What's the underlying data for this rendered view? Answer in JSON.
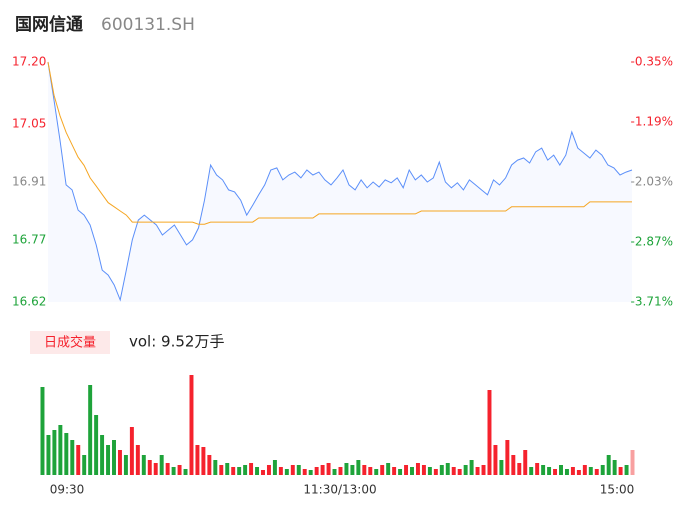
{
  "chart_data": {
    "type": "intraday",
    "title": "国网信通",
    "subtitle": "600131.SH",
    "ylim": [
      16.62,
      17.2
    ],
    "yticks": [
      16.62,
      16.77,
      16.91,
      17.05,
      {
        "value": 17.2,
        "label": "17.20"
      }
    ],
    "y2lim": [
      -3.71,
      -0.35
    ],
    "y2ticks": [
      {
        "value": -3.71,
        "label": "-3.71%"
      },
      {
        "value": -2.87,
        "label": "-2.87%"
      },
      {
        "value": -2.03,
        "label": "-2.03%"
      },
      {
        "value": -1.19,
        "label": "-1.19%"
      },
      {
        "value": -0.35,
        "label": "-0.35%"
      }
    ],
    "x_labels": [
      "09:30",
      "11:30/13:00",
      "15:00"
    ],
    "up_color": "#f5222d",
    "down_color": "#1ea33a",
    "flat_color": "#888888",
    "series": [
      {
        "color": "#5b8ff9",
        "values": [
          17.2,
          17.108,
          17.011,
          16.903,
          16.891,
          16.842,
          16.83,
          16.806,
          16.758,
          16.697,
          16.685,
          16.661,
          16.625,
          16.697,
          16.77,
          16.818,
          16.83,
          16.818,
          16.806,
          16.782,
          16.794,
          16.806,
          16.782,
          16.758,
          16.77,
          16.799,
          16.866,
          16.951,
          16.927,
          16.915,
          16.891,
          16.886,
          16.866,
          16.83,
          16.854,
          16.879,
          16.903,
          16.939,
          16.944,
          16.915,
          16.927,
          16.934,
          16.92,
          16.939,
          16.927,
          16.934,
          16.915,
          16.903,
          16.92,
          16.939,
          16.903,
          16.891,
          16.915,
          16.896,
          16.91,
          16.898,
          16.915,
          16.908,
          16.92,
          16.896,
          16.939,
          16.915,
          16.927,
          16.91,
          16.92,
          16.958,
          16.91,
          16.896,
          16.908,
          16.891,
          16.915,
          16.903,
          16.891,
          16.879,
          16.915,
          16.903,
          16.92,
          16.951,
          16.963,
          16.968,
          16.956,
          16.983,
          16.992,
          16.963,
          16.975,
          16.951,
          16.975,
          17.031,
          16.992,
          16.98,
          16.968,
          16.987,
          16.975,
          16.951,
          16.944,
          16.927,
          16.934,
          16.939
        ]
      },
      {
        "color": "#f5a623",
        "values": [
          17.2,
          17.12,
          17.07,
          17.03,
          17.0,
          16.97,
          16.95,
          16.92,
          16.9,
          16.88,
          16.86,
          16.85,
          16.84,
          16.83,
          16.813,
          16.813,
          16.813,
          16.813,
          16.813,
          16.813,
          16.813,
          16.813,
          16.813,
          16.813,
          16.813,
          16.808,
          16.808,
          16.813,
          16.813,
          16.813,
          16.813,
          16.813,
          16.813,
          16.813,
          16.813,
          16.823,
          16.823,
          16.823,
          16.823,
          16.823,
          16.823,
          16.823,
          16.823,
          16.823,
          16.823,
          16.833,
          16.833,
          16.833,
          16.833,
          16.833,
          16.833,
          16.833,
          16.833,
          16.833,
          16.833,
          16.833,
          16.833,
          16.833,
          16.833,
          16.833,
          16.833,
          16.833,
          16.84,
          16.84,
          16.84,
          16.84,
          16.84,
          16.84,
          16.84,
          16.84,
          16.84,
          16.84,
          16.84,
          16.84,
          16.84,
          16.84,
          16.84,
          16.85,
          16.85,
          16.85,
          16.85,
          16.85,
          16.85,
          16.85,
          16.85,
          16.85,
          16.85,
          16.85,
          16.85,
          16.85,
          16.862,
          16.862,
          16.862,
          16.862,
          16.862,
          16.862,
          16.862,
          16.862
        ]
      }
    ],
    "volume_title": "日成交量",
    "volume_text": "vol: 9.52万手",
    "volume": {
      "values": [
        88,
        40,
        45,
        50,
        42,
        35,
        30,
        20,
        90,
        60,
        40,
        30,
        35,
        25,
        20,
        48,
        30,
        20,
        15,
        12,
        20,
        12,
        8,
        10,
        6,
        100,
        30,
        28,
        20,
        15,
        10,
        12,
        8,
        8,
        10,
        12,
        8,
        5,
        10,
        15,
        8,
        6,
        10,
        10,
        6,
        5,
        8,
        10,
        12,
        6,
        8,
        12,
        10,
        15,
        10,
        8,
        6,
        10,
        12,
        8,
        6,
        10,
        8,
        12,
        10,
        8,
        6,
        10,
        12,
        8,
        6,
        10,
        15,
        8,
        10,
        85,
        30,
        15,
        35,
        20,
        12,
        25,
        8,
        12,
        10,
        8,
        6,
        10,
        6,
        8,
        5,
        10,
        8,
        6,
        10,
        20,
        15,
        8,
        10,
        25
      ],
      "colors": [
        "#1ea33a",
        "#1ea33a",
        "#1ea33a",
        "#1ea33a",
        "#1ea33a",
        "#1ea33a",
        "#f5222d",
        "#1ea33a",
        "#1ea33a",
        "#1ea33a",
        "#1ea33a",
        "#1ea33a",
        "#1ea33a",
        "#f5222d",
        "#1ea33a",
        "#f5222d",
        "#f5222d",
        "#1ea33a",
        "#f5222d",
        "#f5222d",
        "#1ea33a",
        "#f5222d",
        "#1ea33a",
        "#f5222d",
        "#1ea33a",
        "#f5222d",
        "#f5222d",
        "#f5222d",
        "#f5222d",
        "#1ea33a",
        "#f5222d",
        "#1ea33a",
        "#f5222d",
        "#1ea33a",
        "#1ea33a",
        "#f5222d",
        "#1ea33a",
        "#f5222d",
        "#f5222d",
        "#1ea33a",
        "#f5222d",
        "#1ea33a",
        "#f5222d",
        "#1ea33a",
        "#f5222d",
        "#1ea33a",
        "#f5222d",
        "#f5222d",
        "#f5222d",
        "#1ea33a",
        "#f5222d",
        "#1ea33a",
        "#1ea33a",
        "#1ea33a",
        "#f5222d",
        "#f5222d",
        "#1ea33a",
        "#f5222d",
        "#1ea33a",
        "#f5222d",
        "#1ea33a",
        "#f5222d",
        "#1ea33a",
        "#f5222d",
        "#f5222d",
        "#1ea33a",
        "#f5222d",
        "#1ea33a",
        "#1ea33a",
        "#f5222d",
        "#f5222d",
        "#1ea33a",
        "#1ea33a",
        "#f5222d",
        "#f5222d",
        "#f5222d",
        "#f5222d",
        "#1ea33a",
        "#f5222d",
        "#f5222d",
        "#f5222d",
        "#f5222d",
        "#1ea33a",
        "#f5222d",
        "#1ea33a",
        "#1ea33a",
        "#f5222d",
        "#1ea33a",
        "#1ea33a",
        "#f5222d",
        "#f5222d",
        "#f5222d",
        "#1ea33a",
        "#f5222d",
        "#1ea33a",
        "#1ea33a",
        "#1ea33a",
        "#f5222d",
        "#1ea33a",
        "#f8a0a0"
      ]
    }
  }
}
